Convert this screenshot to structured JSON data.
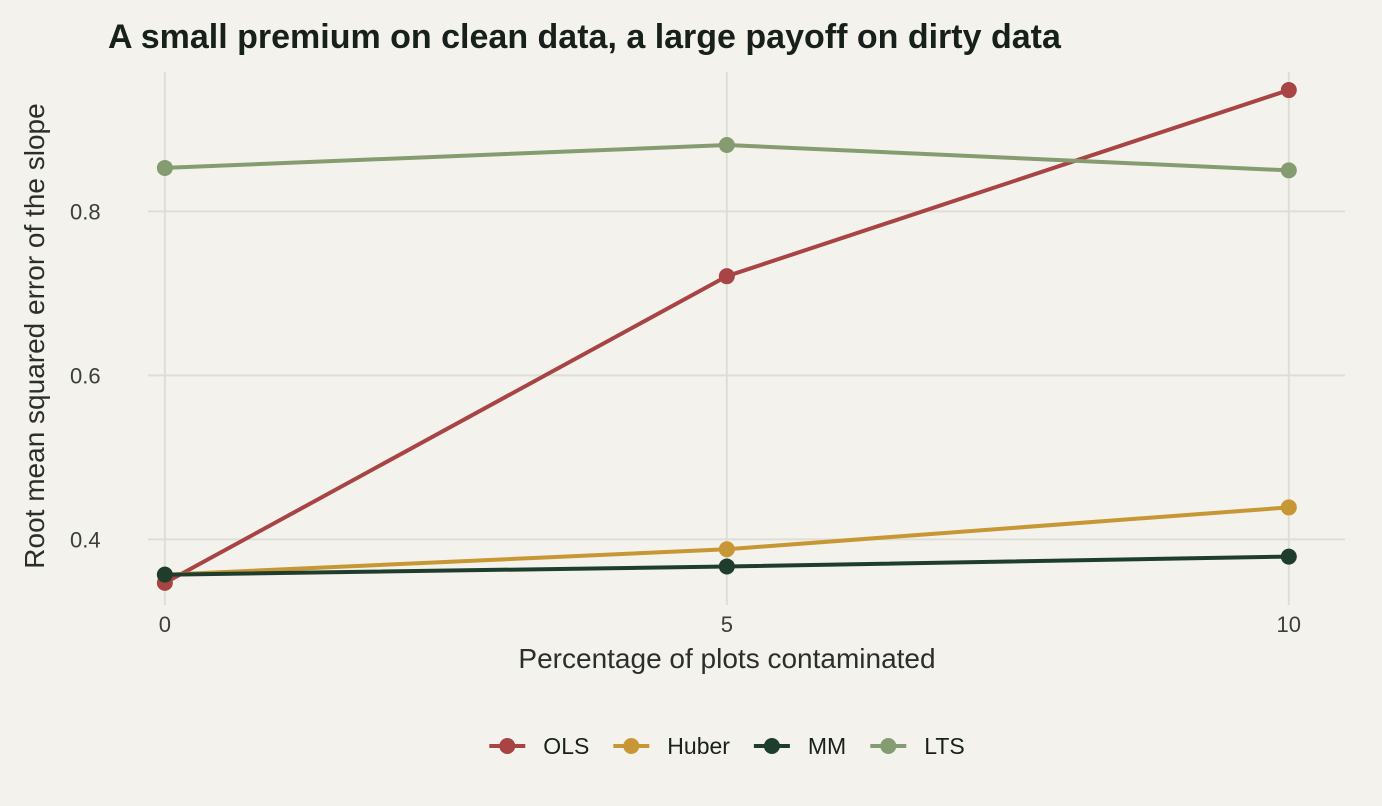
{
  "chart_data": {
    "type": "line",
    "title": "A small premium on clean data, a large payoff on dirty data",
    "xlabel": "Percentage of plots contaminated",
    "ylabel": "Root mean squared error of the slope",
    "x": [
      0,
      5,
      10
    ],
    "xticks": [
      "0",
      "5",
      "10"
    ],
    "yticks": [
      "0.4",
      "0.6",
      "0.8"
    ],
    "ytick_values": [
      0.4,
      0.6,
      0.8
    ],
    "xlim": [
      -0.15,
      10.5
    ],
    "ylim": [
      0.32,
      0.97
    ],
    "grid": true,
    "legend_position": "bottom",
    "series": [
      {
        "name": "OLS",
        "color": "#a94444",
        "values": [
          0.347,
          0.721,
          0.948
        ]
      },
      {
        "name": "Huber",
        "color": "#c79635",
        "values": [
          0.357,
          0.388,
          0.439
        ]
      },
      {
        "name": "MM",
        "color": "#1f3d2c",
        "values": [
          0.357,
          0.367,
          0.379
        ]
      },
      {
        "name": "LTS",
        "color": "#849c70",
        "values": [
          0.853,
          0.881,
          0.85
        ]
      }
    ]
  }
}
